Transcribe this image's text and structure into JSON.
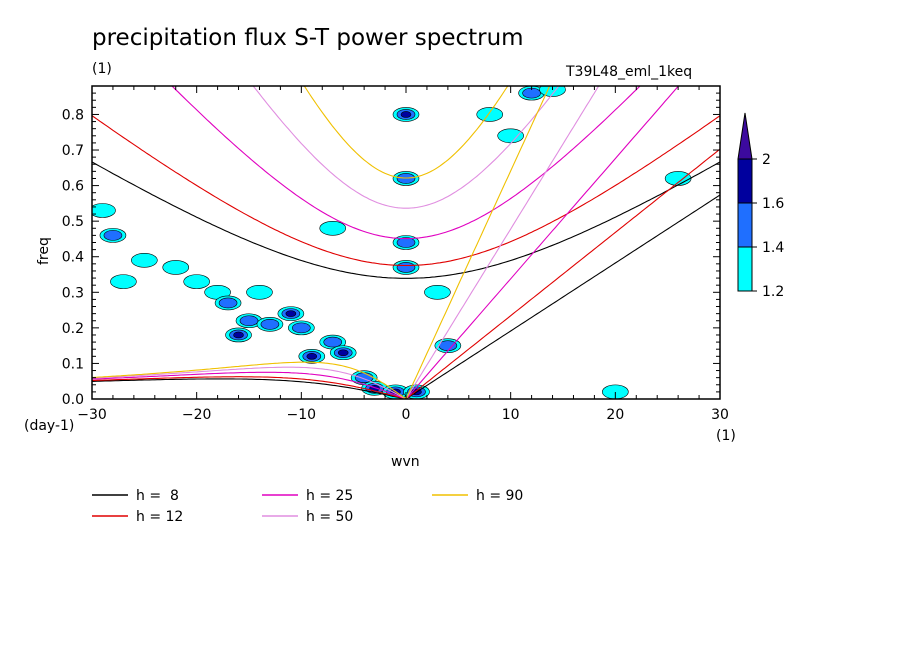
{
  "chart_data": {
    "type": "heatmap",
    "title": "precipitation flux S-T power spectrum",
    "subtitle_left": "(1)",
    "subtitle_right": "T39L48_eml_1keq",
    "xlabel": "wvn",
    "ylabel": "freq",
    "x_unit": "(1)",
    "y_unit": "(day-1)",
    "xlim": [
      -30,
      30
    ],
    "ylim": [
      0,
      0.88
    ],
    "xticks": [
      -30,
      -20,
      -10,
      0,
      10,
      20,
      30
    ],
    "yticks": [
      0.0,
      0.1,
      0.2,
      0.3,
      0.4,
      0.5,
      0.6,
      0.7,
      0.8
    ],
    "colorbar": {
      "levels": [
        1.2,
        1.4,
        1.6,
        2
      ],
      "colors": [
        "#00ffff",
        "#1f6fff",
        "#00009e",
        "#3c0a9e"
      ]
    },
    "contour_blobs": [
      {
        "x": -27,
        "y": 0.33,
        "level": 1
      },
      {
        "x": -25,
        "y": 0.39,
        "level": 1
      },
      {
        "x": -22,
        "y": 0.37,
        "level": 1
      },
      {
        "x": -20,
        "y": 0.33,
        "level": 1
      },
      {
        "x": -18,
        "y": 0.3,
        "level": 1
      },
      {
        "x": -17,
        "y": 0.27,
        "level": 2
      },
      {
        "x": -15,
        "y": 0.22,
        "level": 2
      },
      {
        "x": -16,
        "y": 0.18,
        "level": 3
      },
      {
        "x": -13,
        "y": 0.21,
        "level": 2
      },
      {
        "x": -11,
        "y": 0.24,
        "level": 3
      },
      {
        "x": -10,
        "y": 0.2,
        "level": 2
      },
      {
        "x": -9,
        "y": 0.12,
        "level": 3
      },
      {
        "x": -7,
        "y": 0.16,
        "level": 2
      },
      {
        "x": -6,
        "y": 0.13,
        "level": 3
      },
      {
        "x": -4,
        "y": 0.06,
        "level": 2
      },
      {
        "x": -3,
        "y": 0.03,
        "level": 3
      },
      {
        "x": -1,
        "y": 0.02,
        "level": 3
      },
      {
        "x": 0,
        "y": 0.8,
        "level": 3
      },
      {
        "x": 0,
        "y": 0.62,
        "level": 2
      },
      {
        "x": 0,
        "y": 0.44,
        "level": 2
      },
      {
        "x": 0,
        "y": 0.37,
        "level": 2
      },
      {
        "x": 1,
        "y": 0.02,
        "level": 3
      },
      {
        "x": 4,
        "y": 0.15,
        "level": 2
      },
      {
        "x": 8,
        "y": 0.8,
        "level": 1
      },
      {
        "x": 10,
        "y": 0.74,
        "level": 1
      },
      {
        "x": 12,
        "y": 0.86,
        "level": 2
      },
      {
        "x": 14,
        "y": 0.87,
        "level": 1
      },
      {
        "x": -29,
        "y": 0.53,
        "level": 1
      },
      {
        "x": -28,
        "y": 0.46,
        "level": 2
      },
      {
        "x": -14,
        "y": 0.3,
        "level": 1
      },
      {
        "x": 20,
        "y": 0.02,
        "level": 1
      },
      {
        "x": 26,
        "y": 0.62,
        "level": 1
      },
      {
        "x": 3,
        "y": 0.3,
        "level": 1
      },
      {
        "x": -7,
        "y": 0.48,
        "level": 1
      }
    ],
    "series": [
      {
        "name": "h =  8",
        "color": "#000000",
        "h": 8
      },
      {
        "name": "h = 12",
        "color": "#e00000",
        "h": 12
      },
      {
        "name": "h = 25",
        "color": "#e000c0",
        "h": 25
      },
      {
        "name": "h = 50",
        "color": "#e08ee0",
        "h": 50
      },
      {
        "name": "h = 90",
        "color": "#f0c000",
        "h": 90
      }
    ]
  }
}
